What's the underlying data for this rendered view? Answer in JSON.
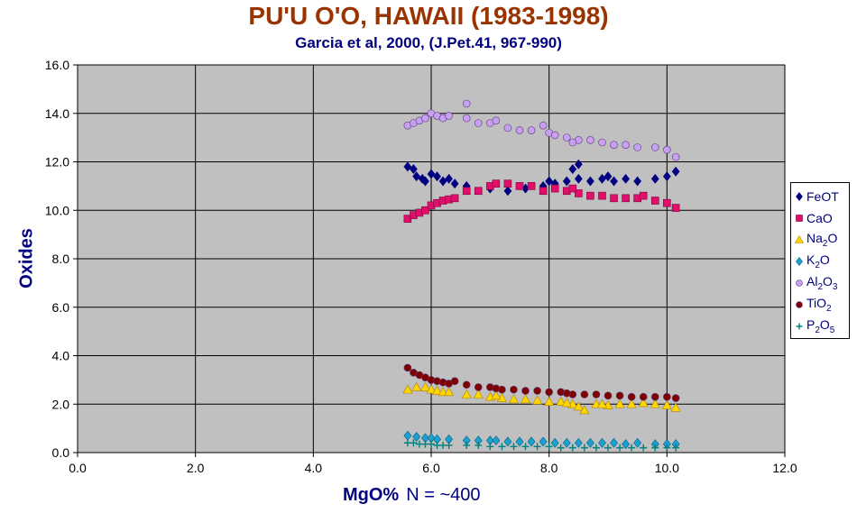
{
  "title": "PU'U O'O, HAWAII (1983-1998)",
  "subtitle": "Garcia et al, 2000, (J.Pet.41, 967-990)",
  "chart_data": {
    "type": "scatter",
    "xlabel": "MgO%",
    "xlabel_note": "N = ~400",
    "ylabel": "Oxides",
    "xlim": [
      0,
      12
    ],
    "ylim": [
      0,
      16
    ],
    "x_ticks": [
      "0.0",
      "2.0",
      "4.0",
      "6.0",
      "8.0",
      "10.0",
      "12.0"
    ],
    "y_ticks": [
      "0.0",
      "2.0",
      "4.0",
      "6.0",
      "8.0",
      "10.0",
      "12.0",
      "14.0",
      "16.0"
    ],
    "grid": true,
    "plot_background": "#c0c0c0",
    "legend_position": "right",
    "series": [
      {
        "name": "FeOT",
        "label_parts": [
          "FeOT"
        ],
        "marker": "diamond",
        "color": "#000080",
        "points": [
          [
            5.6,
            11.8
          ],
          [
            5.7,
            11.7
          ],
          [
            5.75,
            11.4
          ],
          [
            5.85,
            11.3
          ],
          [
            5.9,
            11.2
          ],
          [
            6.0,
            11.5
          ],
          [
            6.1,
            11.4
          ],
          [
            6.2,
            11.2
          ],
          [
            6.3,
            11.3
          ],
          [
            6.4,
            11.1
          ],
          [
            6.6,
            11.0
          ],
          [
            7.0,
            10.9
          ],
          [
            7.3,
            10.8
          ],
          [
            7.6,
            10.9
          ],
          [
            7.9,
            11.0
          ],
          [
            8.1,
            11.1
          ],
          [
            8.3,
            11.2
          ],
          [
            8.5,
            11.3
          ],
          [
            8.7,
            11.2
          ],
          [
            8.9,
            11.3
          ],
          [
            9.1,
            11.2
          ],
          [
            9.3,
            11.3
          ],
          [
            9.5,
            11.2
          ],
          [
            9.8,
            11.3
          ],
          [
            10.0,
            11.4
          ],
          [
            10.15,
            11.6
          ],
          [
            8.4,
            11.7
          ],
          [
            8.5,
            11.9
          ],
          [
            9.0,
            11.4
          ],
          [
            8.0,
            11.2
          ]
        ]
      },
      {
        "name": "CaO",
        "label_parts": [
          "CaO"
        ],
        "marker": "square",
        "color": "#e0106a",
        "points": [
          [
            5.6,
            9.65
          ],
          [
            5.7,
            9.8
          ],
          [
            5.8,
            9.9
          ],
          [
            5.9,
            10.0
          ],
          [
            6.0,
            10.2
          ],
          [
            6.1,
            10.3
          ],
          [
            6.2,
            10.4
          ],
          [
            6.3,
            10.45
          ],
          [
            6.4,
            10.5
          ],
          [
            6.6,
            10.8
          ],
          [
            6.8,
            10.8
          ],
          [
            7.0,
            11.0
          ],
          [
            7.1,
            11.1
          ],
          [
            7.3,
            11.1
          ],
          [
            7.5,
            11.0
          ],
          [
            7.7,
            11.0
          ],
          [
            7.9,
            10.8
          ],
          [
            8.1,
            10.9
          ],
          [
            8.3,
            10.8
          ],
          [
            8.5,
            10.7
          ],
          [
            8.7,
            10.6
          ],
          [
            8.9,
            10.6
          ],
          [
            9.1,
            10.5
          ],
          [
            9.3,
            10.5
          ],
          [
            9.5,
            10.5
          ],
          [
            9.8,
            10.4
          ],
          [
            10.0,
            10.3
          ],
          [
            10.15,
            10.1
          ],
          [
            9.6,
            10.6
          ],
          [
            8.4,
            10.9
          ]
        ]
      },
      {
        "name": "Na2O",
        "label_parts": [
          "Na",
          "2",
          "O"
        ],
        "marker": "triangle",
        "color": "#ffd700",
        "points": [
          [
            5.6,
            2.6
          ],
          [
            5.75,
            2.7
          ],
          [
            5.9,
            2.7
          ],
          [
            6.0,
            2.6
          ],
          [
            6.1,
            2.55
          ],
          [
            6.2,
            2.5
          ],
          [
            6.3,
            2.5
          ],
          [
            6.6,
            2.4
          ],
          [
            6.8,
            2.4
          ],
          [
            7.0,
            2.3
          ],
          [
            7.2,
            2.25
          ],
          [
            7.4,
            2.2
          ],
          [
            7.6,
            2.2
          ],
          [
            7.8,
            2.15
          ],
          [
            8.0,
            2.1
          ],
          [
            8.2,
            2.1
          ],
          [
            8.4,
            2.0
          ],
          [
            8.5,
            1.9
          ],
          [
            8.6,
            1.75
          ],
          [
            8.8,
            2.0
          ],
          [
            9.0,
            1.95
          ],
          [
            9.2,
            2.0
          ],
          [
            9.4,
            2.0
          ],
          [
            9.6,
            2.05
          ],
          [
            9.8,
            2.0
          ],
          [
            10.0,
            1.95
          ],
          [
            10.15,
            1.85
          ],
          [
            7.1,
            2.35
          ],
          [
            8.3,
            2.05
          ],
          [
            8.9,
            2.0
          ]
        ]
      },
      {
        "name": "K2O",
        "label_parts": [
          "K",
          "2",
          "O"
        ],
        "marker": "diamond",
        "color": "#1ca0d0",
        "points": [
          [
            5.6,
            0.7
          ],
          [
            5.75,
            0.65
          ],
          [
            5.9,
            0.6
          ],
          [
            6.1,
            0.55
          ],
          [
            6.3,
            0.55
          ],
          [
            6.6,
            0.5
          ],
          [
            6.8,
            0.5
          ],
          [
            7.0,
            0.5
          ],
          [
            7.3,
            0.45
          ],
          [
            7.5,
            0.45
          ],
          [
            7.7,
            0.45
          ],
          [
            7.9,
            0.45
          ],
          [
            8.1,
            0.4
          ],
          [
            8.3,
            0.4
          ],
          [
            8.5,
            0.4
          ],
          [
            8.7,
            0.4
          ],
          [
            8.9,
            0.4
          ],
          [
            9.1,
            0.4
          ],
          [
            9.3,
            0.35
          ],
          [
            9.5,
            0.4
          ],
          [
            9.8,
            0.35
          ],
          [
            10.0,
            0.35
          ],
          [
            10.15,
            0.35
          ],
          [
            6.0,
            0.6
          ],
          [
            7.1,
            0.5
          ]
        ]
      },
      {
        "name": "Al2O3",
        "label_parts": [
          "Al",
          "2",
          "O",
          "3"
        ],
        "marker": "circle",
        "color": "#c8a0f0",
        "points": [
          [
            5.6,
            13.5
          ],
          [
            5.7,
            13.6
          ],
          [
            5.8,
            13.7
          ],
          [
            5.9,
            13.8
          ],
          [
            6.0,
            14.0
          ],
          [
            6.1,
            13.9
          ],
          [
            6.2,
            13.8
          ],
          [
            6.3,
            13.9
          ],
          [
            6.6,
            14.4
          ],
          [
            6.6,
            13.8
          ],
          [
            6.8,
            13.6
          ],
          [
            7.0,
            13.6
          ],
          [
            7.1,
            13.7
          ],
          [
            7.3,
            13.4
          ],
          [
            7.5,
            13.3
          ],
          [
            7.7,
            13.3
          ],
          [
            7.9,
            13.5
          ],
          [
            8.0,
            13.2
          ],
          [
            8.1,
            13.1
          ],
          [
            8.3,
            13.0
          ],
          [
            8.5,
            12.9
          ],
          [
            8.7,
            12.9
          ],
          [
            8.9,
            12.8
          ],
          [
            9.1,
            12.7
          ],
          [
            9.3,
            12.7
          ],
          [
            9.5,
            12.6
          ],
          [
            9.8,
            12.6
          ],
          [
            10.0,
            12.5
          ],
          [
            10.15,
            12.2
          ],
          [
            8.4,
            12.8
          ]
        ]
      },
      {
        "name": "TiO2",
        "label_parts": [
          "TiO",
          "2"
        ],
        "marker": "circle",
        "color": "#800000",
        "points": [
          [
            5.6,
            3.5
          ],
          [
            5.7,
            3.3
          ],
          [
            5.8,
            3.2
          ],
          [
            5.9,
            3.1
          ],
          [
            6.0,
            3.0
          ],
          [
            6.1,
            2.95
          ],
          [
            6.2,
            2.9
          ],
          [
            6.3,
            2.85
          ],
          [
            6.6,
            2.8
          ],
          [
            6.8,
            2.7
          ],
          [
            7.0,
            2.7
          ],
          [
            7.2,
            2.6
          ],
          [
            7.4,
            2.6
          ],
          [
            7.6,
            2.55
          ],
          [
            7.8,
            2.55
          ],
          [
            8.0,
            2.5
          ],
          [
            8.2,
            2.5
          ],
          [
            8.4,
            2.4
          ],
          [
            8.6,
            2.4
          ],
          [
            8.8,
            2.4
          ],
          [
            9.0,
            2.35
          ],
          [
            9.2,
            2.35
          ],
          [
            9.4,
            2.3
          ],
          [
            9.6,
            2.3
          ],
          [
            9.8,
            2.3
          ],
          [
            10.0,
            2.3
          ],
          [
            10.15,
            2.25
          ],
          [
            6.4,
            2.95
          ],
          [
            7.1,
            2.65
          ],
          [
            8.3,
            2.45
          ]
        ]
      },
      {
        "name": "P2O5",
        "label_parts": [
          "P",
          "2",
          "O",
          "5"
        ],
        "marker": "plus",
        "color": "#008080",
        "points": [
          [
            5.6,
            0.4
          ],
          [
            5.7,
            0.4
          ],
          [
            5.8,
            0.35
          ],
          [
            5.9,
            0.35
          ],
          [
            6.0,
            0.35
          ],
          [
            6.1,
            0.3
          ],
          [
            6.2,
            0.3
          ],
          [
            6.3,
            0.3
          ],
          [
            6.6,
            0.3
          ],
          [
            6.8,
            0.3
          ],
          [
            7.0,
            0.25
          ],
          [
            7.2,
            0.25
          ],
          [
            7.4,
            0.25
          ],
          [
            7.6,
            0.25
          ],
          [
            7.8,
            0.25
          ],
          [
            8.0,
            0.25
          ],
          [
            8.2,
            0.2
          ],
          [
            8.4,
            0.2
          ],
          [
            8.6,
            0.2
          ],
          [
            8.8,
            0.2
          ],
          [
            9.0,
            0.2
          ],
          [
            9.2,
            0.2
          ],
          [
            9.4,
            0.2
          ],
          [
            9.6,
            0.2
          ],
          [
            9.8,
            0.2
          ],
          [
            10.0,
            0.2
          ],
          [
            10.15,
            0.2
          ]
        ]
      }
    ]
  }
}
